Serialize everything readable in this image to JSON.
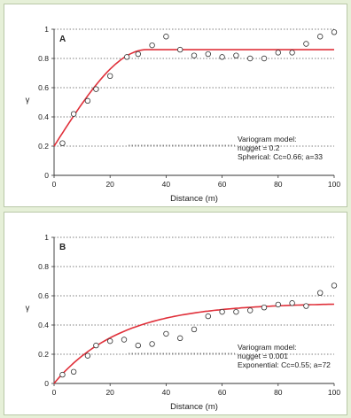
{
  "chart_data": [
    {
      "type": "scatter",
      "panel_label": "A",
      "xlabel": "Distance (m)",
      "ylabel": "γ",
      "xlim": [
        0,
        100
      ],
      "ylim": [
        0,
        1
      ],
      "x_ticks": [
        "0",
        "20",
        "40",
        "60",
        "80",
        "100"
      ],
      "y_ticks": [
        "0",
        "0.2",
        "0.4",
        "0.6",
        "0.8",
        "1"
      ],
      "grid": "horizontal dotted",
      "annotation": [
        "Variogram model:",
        "nugget = 0.2",
        "Spherical: Cc=0.66; a=33"
      ],
      "model": {
        "kind": "spherical",
        "nugget": 0.2,
        "cc": 0.66,
        "a": 33,
        "color": "#e0303a"
      },
      "points": {
        "x": [
          3,
          7,
          12,
          15,
          20,
          26,
          30,
          35,
          40,
          45,
          50,
          55,
          60,
          65,
          70,
          75,
          80,
          85,
          90,
          95,
          100
        ],
        "y": [
          0.22,
          0.42,
          0.51,
          0.59,
          0.68,
          0.81,
          0.83,
          0.89,
          0.95,
          0.86,
          0.82,
          0.83,
          0.81,
          0.82,
          0.8,
          0.8,
          0.84,
          0.84,
          0.9,
          0.95,
          0.98
        ]
      }
    },
    {
      "type": "scatter",
      "panel_label": "B",
      "xlabel": "Distance (m)",
      "ylabel": "γ",
      "xlim": [
        0,
        100
      ],
      "ylim": [
        0,
        1
      ],
      "x_ticks": [
        "0",
        "20",
        "40",
        "60",
        "80",
        "100"
      ],
      "y_ticks": [
        "0",
        "0.2",
        "0.4",
        "0.6",
        "0.8",
        "1"
      ],
      "grid": "horizontal dotted",
      "annotation": [
        "Variogram model:",
        "nugget = 0.001",
        "Exponential: Cc=0.55; a=72"
      ],
      "model": {
        "kind": "exponential",
        "nugget": 0.001,
        "cc": 0.55,
        "a": 72,
        "color": "#e0303a"
      },
      "points": {
        "x": [
          3,
          7,
          12,
          15,
          20,
          25,
          30,
          35,
          40,
          45,
          50,
          55,
          60,
          65,
          70,
          75,
          80,
          85,
          90,
          95,
          100
        ],
        "y": [
          0.06,
          0.08,
          0.19,
          0.26,
          0.29,
          0.3,
          0.26,
          0.27,
          0.34,
          0.31,
          0.37,
          0.46,
          0.49,
          0.49,
          0.5,
          0.52,
          0.54,
          0.55,
          0.53,
          0.62,
          0.67
        ]
      }
    }
  ]
}
